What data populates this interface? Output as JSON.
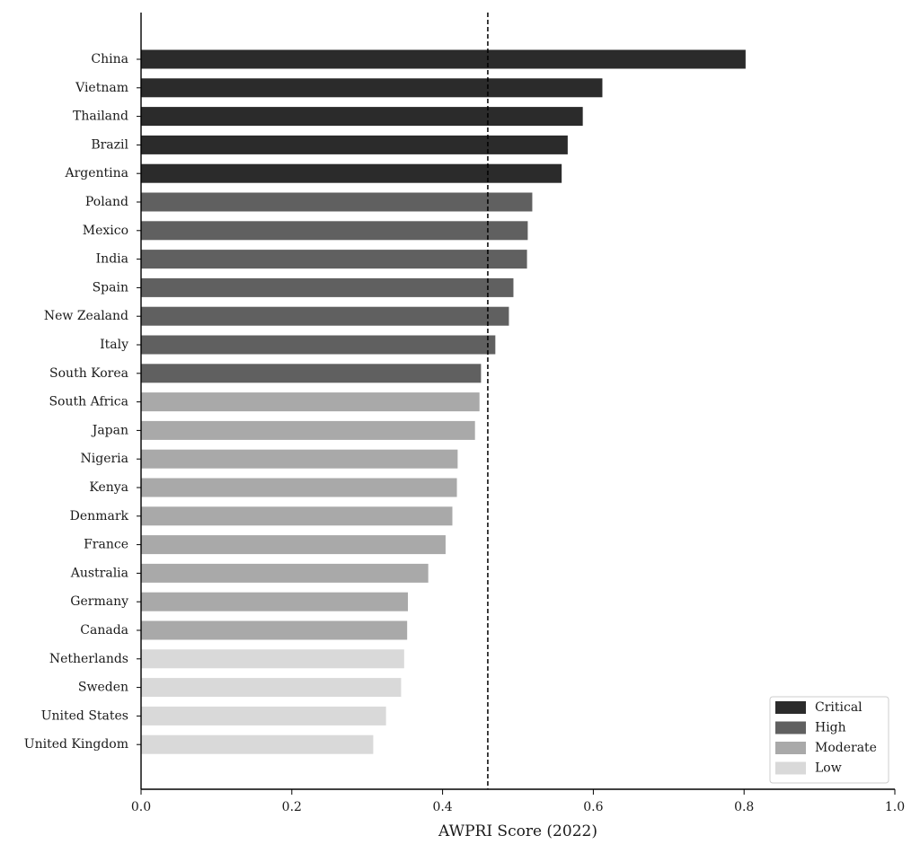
{
  "chart_data": {
    "type": "bar",
    "orientation": "horizontal",
    "title": "",
    "xlabel": "AWPRI Score (2022)",
    "ylabel": "",
    "xlim": [
      0.0,
      1.0
    ],
    "x_ticks": [
      "0.0",
      "0.2",
      "0.4",
      "0.6",
      "0.8",
      "1.0"
    ],
    "reference_line": {
      "x": 0.46,
      "style": "dashed"
    },
    "grid": false,
    "legend_position": "bottom-right",
    "categories": [
      "China",
      "Vietnam",
      "Thailand",
      "Brazil",
      "Argentina",
      "Poland",
      "Mexico",
      "India",
      "Spain",
      "New Zealand",
      "Italy",
      "South Korea",
      "South Africa",
      "Japan",
      "Nigeria",
      "Kenya",
      "Denmark",
      "France",
      "Australia",
      "Germany",
      "Canada",
      "Netherlands",
      "Sweden",
      "United States",
      "United Kingdom"
    ],
    "values": [
      0.802,
      0.612,
      0.586,
      0.566,
      0.558,
      0.519,
      0.513,
      0.512,
      0.494,
      0.488,
      0.47,
      0.451,
      0.449,
      0.443,
      0.42,
      0.419,
      0.413,
      0.404,
      0.381,
      0.354,
      0.353,
      0.349,
      0.345,
      0.325,
      0.308
    ],
    "levels": [
      "Critical",
      "Critical",
      "Critical",
      "Critical",
      "Critical",
      "High",
      "High",
      "High",
      "High",
      "High",
      "High",
      "High",
      "Moderate",
      "Moderate",
      "Moderate",
      "Moderate",
      "Moderate",
      "Moderate",
      "Moderate",
      "Moderate",
      "Moderate",
      "Low",
      "Low",
      "Low",
      "Low"
    ],
    "legend": [
      {
        "name": "Critical",
        "color": "#2b2b2b"
      },
      {
        "name": "High",
        "color": "#606060"
      },
      {
        "name": "Moderate",
        "color": "#a9a9a9"
      },
      {
        "name": "Low",
        "color": "#d9d9d9"
      }
    ]
  }
}
